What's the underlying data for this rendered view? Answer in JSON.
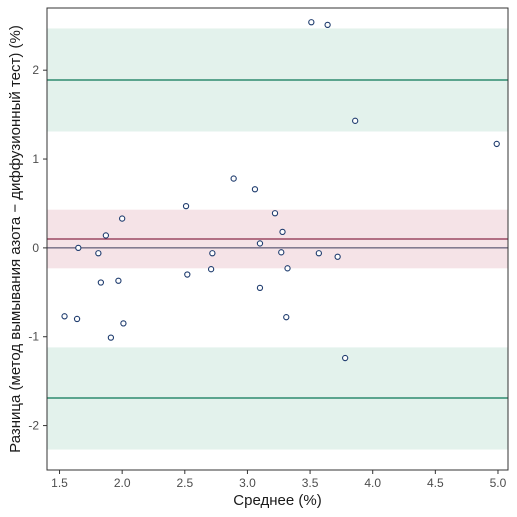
{
  "chart_data": {
    "type": "scatter",
    "title": "",
    "xlabel": "Среднее (%)",
    "ylabel": "Разница (метод вымывания азота − диффузионный тест) (%)",
    "xlim": [
      1.4,
      5.08
    ],
    "ylim": [
      -2.5,
      2.7
    ],
    "x_ticks": [
      1.5,
      2.0,
      2.5,
      3.0,
      3.5,
      4.0,
      4.5,
      5.0
    ],
    "x_tick_labels": [
      "1.5",
      "2.0",
      "2.5",
      "3.0",
      "3.5",
      "4.0",
      "4.5",
      "5.0"
    ],
    "y_ticks": [
      -2,
      -1,
      0,
      1,
      2
    ],
    "y_tick_labels": [
      "-2",
      "-1",
      "0",
      "1",
      "2"
    ],
    "grid": false,
    "bands": [
      {
        "name": "upper-loa-ci",
        "y0": 1.31,
        "y1": 2.47,
        "color": "#e3f2ec"
      },
      {
        "name": "mean-diff-ci",
        "y0": -0.23,
        "y1": 0.43,
        "color": "#f5e3e7"
      },
      {
        "name": "lower-loa-ci",
        "y0": -2.27,
        "y1": -1.12,
        "color": "#e3f2ec"
      }
    ],
    "hlines": [
      {
        "name": "zero-line",
        "y": 0.0,
        "color": "#3d3d5c",
        "width": 1
      },
      {
        "name": "mean-difference-line",
        "y": 0.1,
        "color": "#8b2a48",
        "width": 1.2
      },
      {
        "name": "upper-limit-line",
        "y": 1.89,
        "color": "#2e8b6e",
        "width": 1.5
      },
      {
        "name": "lower-limit-line",
        "y": -1.69,
        "color": "#2e8b6e",
        "width": 1.5
      }
    ],
    "point_color": "#1f3c6e",
    "series": [
      {
        "points": [
          [
            1.54,
            -0.77
          ],
          [
            1.64,
            -0.8
          ],
          [
            1.65,
            0.0
          ],
          [
            1.81,
            -0.06
          ],
          [
            1.83,
            -0.39
          ],
          [
            1.87,
            0.14
          ],
          [
            1.91,
            -1.01
          ],
          [
            1.97,
            -0.37
          ],
          [
            2.0,
            0.33
          ],
          [
            2.01,
            -0.85
          ],
          [
            2.51,
            0.47
          ],
          [
            2.52,
            -0.3
          ],
          [
            2.71,
            -0.24
          ],
          [
            2.72,
            -0.06
          ],
          [
            2.89,
            0.78
          ],
          [
            3.06,
            0.66
          ],
          [
            3.1,
            0.05
          ],
          [
            3.1,
            -0.45
          ],
          [
            3.22,
            0.39
          ],
          [
            3.27,
            -0.05
          ],
          [
            3.28,
            0.18
          ],
          [
            3.31,
            -0.78
          ],
          [
            3.32,
            -0.23
          ],
          [
            3.51,
            2.54
          ],
          [
            3.57,
            -0.06
          ],
          [
            3.64,
            2.51
          ],
          [
            3.72,
            -0.1
          ],
          [
            3.78,
            -1.24
          ],
          [
            3.86,
            1.43
          ],
          [
            4.99,
            1.17
          ]
        ]
      }
    ]
  }
}
